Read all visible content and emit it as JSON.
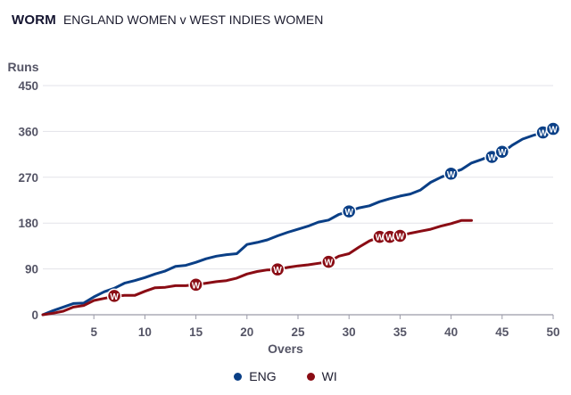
{
  "header": {
    "title": "WORM",
    "subtitle": "ENGLAND WOMEN v WEST INDIES WOMEN"
  },
  "legend": [
    {
      "label": "ENG",
      "color": "#0a3f86"
    },
    {
      "label": "WI",
      "color": "#8a0c14"
    }
  ],
  "chart_data": {
    "type": "line",
    "title": "WORM",
    "subtitle": "ENGLAND WOMEN v WEST INDIES WOMEN",
    "xlabel": "Overs",
    "ylabel": "Runs",
    "xlim": [
      0,
      50
    ],
    "ylim": [
      0,
      450
    ],
    "xticks": [
      5,
      10,
      15,
      20,
      25,
      30,
      35,
      40,
      45,
      50
    ],
    "yticks": [
      0,
      90,
      180,
      270,
      360,
      450
    ],
    "grid": true,
    "legend_position": "bottom",
    "wicket_marker_label": "W",
    "series": [
      {
        "name": "ENG",
        "color": "#0a3f86",
        "x": [
          0,
          1,
          2,
          3,
          4,
          5,
          6,
          7,
          8,
          9,
          10,
          11,
          12,
          13,
          14,
          15,
          16,
          17,
          18,
          19,
          20,
          21,
          22,
          23,
          24,
          25,
          26,
          27,
          28,
          29,
          30,
          31,
          32,
          33,
          34,
          35,
          36,
          37,
          38,
          39,
          40,
          41,
          42,
          43,
          44,
          45,
          46,
          47,
          48,
          49,
          50
        ],
        "y": [
          0,
          8,
          15,
          22,
          23,
          35,
          45,
          52,
          62,
          67,
          73,
          80,
          86,
          95,
          97,
          103,
          110,
          115,
          118,
          120,
          138,
          142,
          147,
          155,
          162,
          168,
          174,
          182,
          186,
          197,
          203,
          210,
          214,
          222,
          228,
          233,
          237,
          245,
          260,
          270,
          278,
          285,
          298,
          305,
          313,
          318,
          333,
          345,
          352,
          358,
          365
        ],
        "wickets": [
          {
            "over": 30,
            "runs": 203
          },
          {
            "over": 40,
            "runs": 277
          },
          {
            "over": 44,
            "runs": 310
          },
          {
            "over": 45,
            "runs": 320
          },
          {
            "over": 49,
            "runs": 358
          },
          {
            "over": 50,
            "runs": 365
          }
        ]
      },
      {
        "name": "WI",
        "color": "#8a0c14",
        "x": [
          0,
          1,
          2,
          3,
          4,
          5,
          6,
          7,
          8,
          9,
          10,
          11,
          12,
          13,
          14,
          15,
          16,
          17,
          18,
          19,
          20,
          21,
          22,
          23,
          24,
          25,
          26,
          27,
          28,
          29,
          30,
          31,
          32,
          33,
          34,
          35,
          36,
          37,
          38,
          39,
          40,
          41,
          42
        ],
        "y": [
          0,
          3,
          7,
          15,
          18,
          28,
          32,
          36,
          38,
          38,
          46,
          53,
          54,
          57,
          57,
          59,
          62,
          65,
          67,
          72,
          80,
          85,
          88,
          89,
          93,
          96,
          98,
          101,
          104,
          115,
          120,
          133,
          145,
          153,
          153,
          155,
          160,
          164,
          168,
          174,
          179,
          185,
          185
        ],
        "wickets": [
          {
            "over": 7,
            "runs": 37
          },
          {
            "over": 15,
            "runs": 59
          },
          {
            "over": 23,
            "runs": 89
          },
          {
            "over": 28,
            "runs": 104
          },
          {
            "over": 33,
            "runs": 153
          },
          {
            "over": 34,
            "runs": 153
          },
          {
            "over": 35,
            "runs": 155
          }
        ]
      }
    ]
  }
}
